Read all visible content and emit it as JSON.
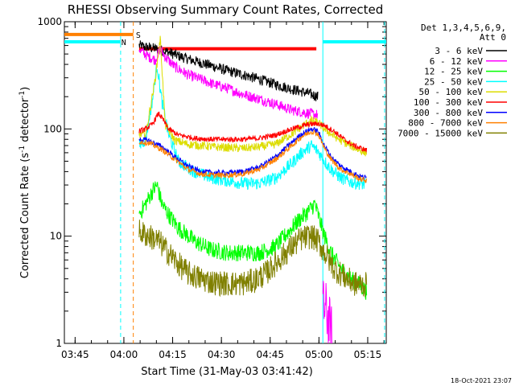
{
  "chart_data": {
    "type": "line",
    "title": "RHESSI Observing Summary Count Rates, Corrected",
    "xlabel": "Start Time (31-May-03 03:41:42)",
    "ylabel_parts": [
      "Corrected Count Rate (s",
      "-1",
      " detector",
      "-1",
      ")"
    ],
    "x_unit": "minutes after 03:41:42",
    "xlim": [
      0,
      99
    ],
    "ylim": [
      1,
      1000
    ],
    "yscale": "log",
    "x_ticks": [
      {
        "label": "03:45",
        "t": 3.3
      },
      {
        "label": "04:00",
        "t": 18.3
      },
      {
        "label": "04:15",
        "t": 33.3
      },
      {
        "label": "04:30",
        "t": 48.3
      },
      {
        "label": "04:45",
        "t": 63.3
      },
      {
        "label": "05:00",
        "t": 78.3
      },
      {
        "label": "05:15",
        "t": 93.3
      }
    ],
    "y_ticks": [
      {
        "label": "1",
        "v": 1
      },
      {
        "label": "10",
        "v": 10
      },
      {
        "label": "100",
        "v": 100
      },
      {
        "label": "1000",
        "v": 1000
      }
    ],
    "legend": {
      "header": [
        "Det 1,3,4,5,6,9,",
        "Att 0"
      ],
      "placement": "outside-right",
      "entries": [
        {
          "label": "3 - 6 keV",
          "color": "#000000"
        },
        {
          "label": "6 - 12 keV",
          "color": "#ff00ff"
        },
        {
          "label": "12 - 25 keV",
          "color": "#00ff00"
        },
        {
          "label": "25 - 50 keV",
          "color": "#00ffff"
        },
        {
          "label": "50 - 100 keV",
          "color": "#dddd00"
        },
        {
          "label": "100 - 300 keV",
          "color": "#ff0000"
        },
        {
          "label": "300 - 800 keV",
          "color": "#0000ff"
        },
        {
          "label": "800 - 7000 keV",
          "color": "#ff8000"
        },
        {
          "label": "7000 - 15000 keV",
          "color": "#808000"
        }
      ]
    },
    "annotations": [
      {
        "label": "N",
        "color": "#00ffff",
        "t": 17.5,
        "v": 650
      },
      {
        "label": "S",
        "color": "#ff8000",
        "t": 22.0,
        "v": 760
      }
    ],
    "flags": [
      {
        "name": "night",
        "color": "#00ffff",
        "v": 650,
        "ranges": [
          [
            0,
            17.3
          ],
          [
            79.5,
            99
          ]
        ]
      },
      {
        "name": "saa",
        "color": "#ff8000",
        "v": 760,
        "ranges": [
          [
            0,
            21.2
          ]
        ]
      },
      {
        "name": "flare",
        "color": "#ff0000",
        "v": 560,
        "ranges": [
          [
            23,
            77.5
          ]
        ]
      }
    ],
    "vertical_lines": [
      {
        "t": 17.3,
        "color": "#00ffff",
        "style": "dashed"
      },
      {
        "t": 21.2,
        "color": "#ff8000",
        "style": "dashed"
      },
      {
        "t": 79.5,
        "color": "#00ffff",
        "style": "solid"
      },
      {
        "t": 98.5,
        "color": "#00ffff",
        "style": "dashed"
      }
    ],
    "series": [
      {
        "name": "3 - 6 keV",
        "color": "#000000",
        "noise": 0.05,
        "x": [
          23,
          25,
          28,
          32,
          36,
          40,
          45,
          50,
          55,
          60,
          65,
          70,
          75,
          78
        ],
        "y": [
          600,
          580,
          560,
          520,
          470,
          430,
          390,
          350,
          320,
          290,
          260,
          235,
          215,
          200
        ]
      },
      {
        "name": "6 - 12 keV",
        "color": "#ff00ff",
        "noise": 0.05,
        "x": [
          23,
          24,
          26,
          28,
          29.5,
          31,
          34,
          38,
          42,
          46,
          50,
          55,
          60,
          65,
          70,
          75,
          78
        ],
        "y": [
          560,
          520,
          470,
          440,
          560,
          470,
          380,
          320,
          290,
          260,
          240,
          210,
          190,
          170,
          150,
          140,
          135
        ]
      },
      {
        "name": "6 - 12 keV (tail)",
        "color": "#ff00ff",
        "noise": 0.28,
        "x": [
          79.5,
          80.5,
          81.5,
          82.3
        ],
        "y": [
          2.2,
          2.0,
          1.5,
          1.2
        ]
      },
      {
        "name": "12 - 25 keV",
        "color": "#00ff00",
        "noise": 0.08,
        "x": [
          23,
          25,
          27,
          28.5,
          30,
          32,
          35,
          40,
          45,
          50,
          55,
          60,
          65,
          70,
          72,
          75,
          77,
          78,
          80,
          82,
          85,
          88,
          91,
          93
        ],
        "y": [
          16,
          20,
          26,
          30,
          20,
          16,
          12,
          9,
          7.5,
          7,
          7,
          7,
          8,
          12,
          14,
          17,
          20,
          16,
          10,
          7,
          5,
          4,
          3.5,
          3
        ]
      },
      {
        "name": "25 - 50 keV",
        "color": "#00ffff",
        "noise": 0.06,
        "x": [
          23,
          25,
          27,
          28.5,
          30,
          32,
          35,
          40,
          45,
          50,
          55,
          60,
          65,
          70,
          73,
          76,
          78,
          80,
          82,
          85,
          88,
          91,
          93
        ],
        "y": [
          70,
          80,
          180,
          400,
          180,
          90,
          50,
          40,
          35,
          33,
          31,
          31,
          35,
          48,
          60,
          70,
          62,
          50,
          42,
          35,
          32,
          31,
          30
        ]
      },
      {
        "name": "50 - 100 keV",
        "color": "#dddd00",
        "noise": 0.04,
        "x": [
          23,
          25,
          28,
          29.5,
          31,
          34,
          38,
          42,
          46,
          50,
          55,
          60,
          65,
          70,
          73,
          76,
          78,
          80,
          82,
          85,
          88,
          91,
          93
        ],
        "y": [
          90,
          88,
          300,
          700,
          110,
          78,
          72,
          70,
          68,
          67,
          66,
          68,
          72,
          90,
          105,
          120,
          115,
          100,
          90,
          78,
          70,
          63,
          60
        ]
      },
      {
        "name": "100 - 300 keV",
        "color": "#ff0000",
        "noise": 0.025,
        "x": [
          23,
          25,
          27,
          29,
          30.5,
          32,
          35,
          40,
          45,
          50,
          55,
          60,
          65,
          70,
          75,
          78,
          80,
          83,
          86,
          89,
          93
        ],
        "y": [
          95,
          100,
          110,
          140,
          120,
          100,
          88,
          82,
          80,
          80,
          80,
          82,
          88,
          100,
          110,
          112,
          108,
          95,
          80,
          70,
          63
        ]
      },
      {
        "name": "300 - 800 keV",
        "color": "#0000ff",
        "noise": 0.025,
        "x": [
          23,
          26,
          30,
          34,
          38,
          42,
          46,
          50,
          55,
          60,
          65,
          70,
          73,
          76,
          78,
          80,
          82,
          85,
          88,
          91,
          93
        ],
        "y": [
          80,
          78,
          68,
          55,
          45,
          40,
          39,
          39,
          40,
          44,
          55,
          75,
          90,
          100,
          95,
          70,
          55,
          45,
          40,
          36,
          35
        ]
      },
      {
        "name": "800 - 7000 keV",
        "color": "#ff8000",
        "noise": 0.025,
        "x": [
          23,
          26,
          30,
          34,
          38,
          42,
          46,
          50,
          55,
          60,
          65,
          70,
          73,
          76,
          78,
          80,
          82,
          85,
          88,
          91,
          93
        ],
        "y": [
          76,
          74,
          64,
          52,
          42,
          38,
          37,
          37,
          38,
          42,
          52,
          70,
          85,
          95,
          90,
          66,
          52,
          42,
          38,
          34,
          33
        ]
      },
      {
        "name": "7000 - 15000 keV",
        "color": "#808000",
        "noise": 0.12,
        "x": [
          23,
          26,
          29,
          32,
          35,
          38,
          42,
          46,
          50,
          54,
          58,
          62,
          66,
          70,
          73,
          76,
          78,
          80,
          83,
          86,
          89,
          93
        ],
        "y": [
          11,
          10,
          9,
          7,
          5.5,
          4.5,
          4,
          3.7,
          3.6,
          3.6,
          3.8,
          4.5,
          6,
          8,
          9.5,
          10,
          9,
          7,
          5,
          4.2,
          3.6,
          3.5
        ]
      }
    ]
  },
  "timestamp": "18-Oct-2021 23:07"
}
